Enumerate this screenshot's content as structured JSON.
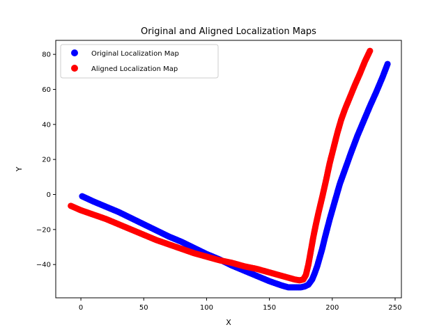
{
  "chart_data": {
    "type": "scatter",
    "title": "Original and Aligned Localization Maps",
    "xlabel": "X",
    "ylabel": "Y",
    "xlim": [
      -20,
      255
    ],
    "ylim": [
      -59,
      88
    ],
    "xticks": [
      0,
      50,
      100,
      150,
      200,
      250
    ],
    "yticks": [
      -40,
      -20,
      0,
      20,
      40,
      60,
      80
    ],
    "legend_position": "top-left",
    "grid": false,
    "series": [
      {
        "name": "Original Localization Map",
        "color": "#0000ff",
        "x": [
          1,
          10,
          20,
          30,
          40,
          50,
          60,
          70,
          80,
          90,
          100,
          110,
          120,
          130,
          140,
          150,
          160,
          165,
          170,
          175,
          178,
          181,
          184,
          186,
          188,
          190,
          192,
          194,
          196,
          198,
          200,
          203,
          206,
          210,
          215,
          220,
          225,
          230,
          235,
          240,
          244
        ],
        "y": [
          -1,
          -4,
          -7,
          -10,
          -13.5,
          -17,
          -20.5,
          -24,
          -27,
          -30.5,
          -34,
          -37,
          -40.5,
          -43.5,
          -46.5,
          -49.5,
          -52,
          -53,
          -53,
          -53,
          -52.5,
          -51.5,
          -48.5,
          -45,
          -41,
          -36,
          -31,
          -25,
          -19.5,
          -14,
          -9,
          -1.5,
          6,
          14,
          24,
          33.5,
          42,
          50.5,
          58.5,
          67,
          74.5
        ]
      },
      {
        "name": "Aligned Localization Map",
        "color": "#ff0000",
        "x": [
          -8,
          0,
          10,
          20,
          30,
          40,
          50,
          60,
          70,
          80,
          90,
          100,
          110,
          120,
          130,
          140,
          150,
          160,
          165,
          170,
          174,
          177,
          179,
          181,
          183,
          185,
          187,
          189,
          192,
          195,
          198,
          201,
          204,
          207,
          210,
          214,
          218,
          222,
          226,
          230
        ],
        "y": [
          -6.5,
          -9,
          -11.5,
          -14,
          -17,
          -20,
          -23,
          -26,
          -28.5,
          -31,
          -33.5,
          -35.5,
          -37.5,
          -39,
          -41,
          -42.5,
          -44.5,
          -46.5,
          -47.5,
          -48.5,
          -49,
          -48.5,
          -46,
          -40,
          -32,
          -24,
          -17,
          -10.5,
          -1.5,
          8,
          18,
          26.5,
          35,
          42.5,
          48.5,
          55.5,
          62.5,
          69,
          76,
          82
        ]
      }
    ]
  }
}
